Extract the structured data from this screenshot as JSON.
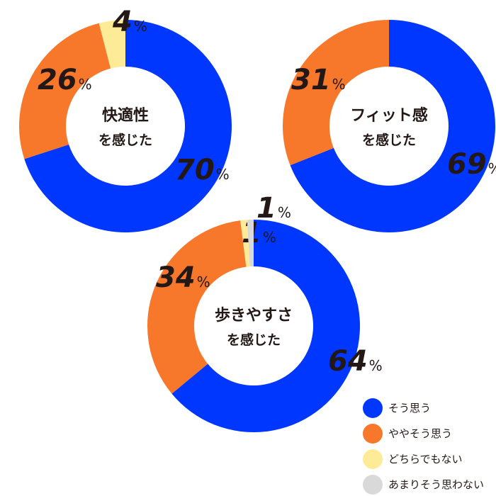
{
  "chart_data": [
    {
      "type": "pie",
      "center_label": [
        "快適性",
        "を感じた"
      ],
      "categories": [
        "そう思う",
        "ややそう思う",
        "どちらでもない",
        "あまりそう思わない"
      ],
      "values": [
        70,
        26,
        4,
        0
      ]
    },
    {
      "type": "pie",
      "center_label": [
        "フィット感",
        "を感じた"
      ],
      "categories": [
        "そう思う",
        "ややそう思う",
        "どちらでもない",
        "あまりそう思わない"
      ],
      "values": [
        69,
        31,
        0,
        0
      ]
    },
    {
      "type": "pie",
      "center_label": [
        "歩きやすさ",
        "を感じた"
      ],
      "categories": [
        "そう思う",
        "ややそう思う",
        "どちらでもない",
        "あまりそう思わない"
      ],
      "values": [
        64,
        34,
        1,
        1
      ]
    }
  ],
  "legend": [
    {
      "label": "そう思う",
      "color": "#0037FF"
    },
    {
      "label": "ややそう思う",
      "color": "#F7782B"
    },
    {
      "label": "どちらでもない",
      "color": "#FDEB97"
    },
    {
      "label": "あまりそう思わない",
      "color": "#D9D9D9"
    }
  ],
  "percent_sign": "%"
}
